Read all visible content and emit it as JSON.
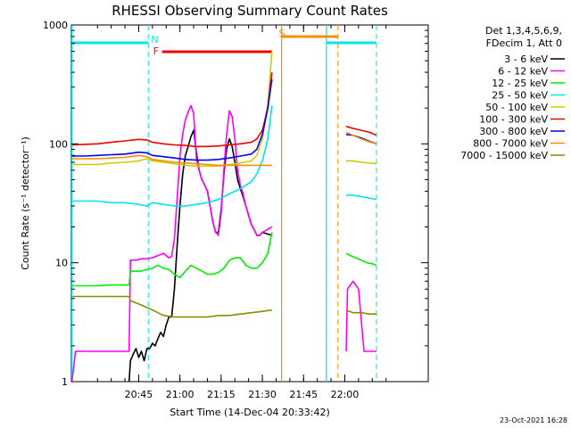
{
  "chart_data": {
    "type": "line",
    "title": "RHESSI Observing Summary Count Rates",
    "xlabel": "Start Time (14-Dec-04 20:33:42)",
    "ylabel": "Count Rate (s⁻¹ detector⁻¹)",
    "ylog": true,
    "ylim": [
      1,
      1000
    ],
    "xlim_minutes": [
      20.5,
      113.0
    ],
    "xticks": [
      {
        "min": 45,
        "label": "20:45"
      },
      {
        "min": 60,
        "label": "21:00"
      },
      {
        "min": 75,
        "label": "21:15"
      },
      {
        "min": 90,
        "label": "21:30"
      },
      {
        "min": 105,
        "label": "21:45"
      },
      {
        "min": 120,
        "label": "22:00"
      }
    ],
    "yticks": [
      {
        "v": 1,
        "label": "1"
      },
      {
        "v": 10,
        "label": "10"
      },
      {
        "v": 100,
        "label": "100"
      },
      {
        "v": 1000,
        "label": "1000"
      }
    ],
    "info_lines": [
      "Det 1,3,4,5,6,9,",
      "FDecim 1, Att 0"
    ],
    "footer": "23-Oct-2021 16:28",
    "flags": [
      {
        "label": "N",
        "color": "#00e5ee",
        "solid_min": 20.7,
        "dashed_min": 48.5,
        "label_min": 49.5
      },
      {
        "label": "F",
        "color": "#ee0000",
        "start_min": 53.5,
        "end_min": 93.5
      },
      {
        "label": "S",
        "color": "#ff8c00",
        "solid_min": 97.0,
        "dashed_min": 117.5,
        "label_min": 96.0
      },
      {
        "label": "",
        "color": "#00e5ee",
        "solid_min": 113.3,
        "dashed_min": 131.5
      }
    ],
    "series": [
      {
        "name": "3 - 6 keV",
        "color": "#000000",
        "points": [
          [
            41.5,
            1
          ],
          [
            42,
            1.5
          ],
          [
            43,
            1.7
          ],
          [
            44,
            1.9
          ],
          [
            45,
            1.6
          ],
          [
            46,
            1.8
          ],
          [
            47,
            1.5
          ],
          [
            48,
            1.9
          ],
          [
            49,
            1.9
          ],
          [
            50,
            2.1
          ],
          [
            51,
            2.0
          ],
          [
            52,
            2.3
          ],
          [
            53,
            2.6
          ],
          [
            54,
            2.4
          ],
          [
            55,
            3.0
          ],
          [
            56,
            3.5
          ],
          [
            57,
            3.5
          ],
          [
            58,
            6
          ],
          [
            59,
            14
          ],
          [
            60,
            30
          ],
          [
            61,
            55
          ],
          [
            62,
            80
          ],
          [
            63,
            95
          ],
          [
            64,
            115
          ],
          [
            65,
            130
          ],
          [
            66,
            85
          ],
          [
            67,
            60
          ],
          [
            68,
            50
          ],
          [
            69,
            45
          ],
          [
            70,
            40
          ],
          [
            71,
            30
          ],
          [
            72,
            22
          ],
          [
            73,
            18
          ],
          [
            74,
            18
          ],
          [
            75,
            28
          ],
          [
            76,
            55
          ],
          [
            77,
            90
          ],
          [
            78,
            110
          ],
          [
            79,
            95
          ],
          [
            80,
            70
          ],
          [
            81,
            50
          ],
          [
            82,
            42
          ],
          [
            83,
            36
          ],
          [
            84,
            30
          ],
          [
            85,
            25
          ],
          [
            86,
            21
          ],
          [
            87,
            19
          ],
          [
            88,
            17
          ],
          [
            89,
            17
          ],
          [
            90,
            18
          ],
          [
            93.5,
            17
          ]
        ]
      },
      {
        "name": "6 - 12 keV",
        "color": "#ff00ff",
        "points": [
          [
            20.7,
            1
          ],
          [
            22,
            1.8
          ],
          [
            26,
            1.8
          ],
          [
            30,
            1.8
          ],
          [
            35,
            1.8
          ],
          [
            41.5,
            1.8
          ],
          [
            42,
            10.5
          ],
          [
            44,
            10.5
          ],
          [
            46,
            10.8
          ],
          [
            48,
            10.8
          ],
          [
            50,
            11
          ],
          [
            52,
            11.5
          ],
          [
            54,
            12
          ],
          [
            56,
            11
          ],
          [
            57,
            11.3
          ],
          [
            58,
            16
          ],
          [
            59,
            35
          ],
          [
            60,
            80
          ],
          [
            61,
            120
          ],
          [
            62,
            160
          ],
          [
            63,
            185
          ],
          [
            64,
            210
          ],
          [
            65,
            180
          ],
          [
            66,
            75
          ],
          [
            67,
            60
          ],
          [
            68,
            50
          ],
          [
            69,
            45
          ],
          [
            70,
            40
          ],
          [
            71,
            30
          ],
          [
            72,
            22
          ],
          [
            73,
            18
          ],
          [
            74,
            17
          ],
          [
            75,
            26
          ],
          [
            76,
            60
          ],
          [
            77,
            120
          ],
          [
            78,
            190
          ],
          [
            79,
            170
          ],
          [
            80,
            110
          ],
          [
            81,
            60
          ],
          [
            82,
            45
          ],
          [
            83,
            38
          ],
          [
            84,
            30
          ],
          [
            85,
            25
          ],
          [
            86,
            21
          ],
          [
            87,
            19
          ],
          [
            88,
            17
          ],
          [
            89,
            17
          ],
          [
            90,
            18
          ],
          [
            93.5,
            20
          ],
          [
            120.5,
            1.8
          ],
          [
            121,
            6
          ],
          [
            123,
            7
          ],
          [
            125,
            6
          ],
          [
            127,
            1.8
          ],
          [
            131.5,
            1.8
          ]
        ]
      },
      {
        "name": "12 - 25 keV",
        "color": "#00ee00",
        "points": [
          [
            20.7,
            6.4
          ],
          [
            25,
            6.4
          ],
          [
            30,
            6.4
          ],
          [
            35,
            6.5
          ],
          [
            40,
            6.5
          ],
          [
            41.5,
            6.5
          ],
          [
            42,
            8.5
          ],
          [
            44,
            8.5
          ],
          [
            46,
            8.5
          ],
          [
            48,
            8.8
          ],
          [
            50,
            9
          ],
          [
            52,
            9.5
          ],
          [
            54,
            9
          ],
          [
            56,
            8.8
          ],
          [
            58,
            8
          ],
          [
            60,
            7.5
          ],
          [
            62,
            8.5
          ],
          [
            64,
            9.5
          ],
          [
            66,
            9
          ],
          [
            68,
            8.5
          ],
          [
            70,
            8
          ],
          [
            72,
            8
          ],
          [
            74,
            8.3
          ],
          [
            76,
            9
          ],
          [
            78,
            10.5
          ],
          [
            80,
            11
          ],
          [
            82,
            11
          ],
          [
            84,
            9.5
          ],
          [
            86,
            9
          ],
          [
            88,
            9
          ],
          [
            90,
            10
          ],
          [
            92,
            12
          ],
          [
            93.5,
            18
          ],
          [
            120.5,
            12
          ],
          [
            122,
            11.5
          ],
          [
            124,
            11
          ],
          [
            126,
            10.5
          ],
          [
            128,
            10
          ],
          [
            130,
            9.8
          ],
          [
            131.5,
            9.5
          ]
        ]
      },
      {
        "name": "25 - 50 keV",
        "color": "#00e5ee",
        "points": [
          [
            20.7,
            33
          ],
          [
            25,
            33
          ],
          [
            30,
            33
          ],
          [
            35,
            32
          ],
          [
            40,
            32
          ],
          [
            45,
            31
          ],
          [
            48,
            30
          ],
          [
            50,
            32
          ],
          [
            54,
            31
          ],
          [
            58,
            30
          ],
          [
            62,
            30
          ],
          [
            66,
            31
          ],
          [
            70,
            32
          ],
          [
            74,
            34
          ],
          [
            78,
            38
          ],
          [
            82,
            42
          ],
          [
            86,
            48
          ],
          [
            88,
            56
          ],
          [
            90,
            72
          ],
          [
            92,
            110
          ],
          [
            93.5,
            210
          ],
          [
            120.5,
            37
          ],
          [
            123,
            37
          ],
          [
            126,
            36
          ],
          [
            129,
            35
          ],
          [
            131.5,
            34
          ]
        ]
      },
      {
        "name": "50 - 100 keV",
        "color": "#cccc00",
        "points": [
          [
            20.7,
            67
          ],
          [
            25,
            67
          ],
          [
            30,
            67
          ],
          [
            35,
            69
          ],
          [
            40,
            70
          ],
          [
            45,
            72
          ],
          [
            48,
            75
          ],
          [
            50,
            72
          ],
          [
            54,
            70
          ],
          [
            58,
            68
          ],
          [
            62,
            66
          ],
          [
            66,
            65
          ],
          [
            70,
            65
          ],
          [
            74,
            65
          ],
          [
            78,
            67
          ],
          [
            82,
            69
          ],
          [
            86,
            72
          ],
          [
            88,
            80
          ],
          [
            90,
            110
          ],
          [
            92,
            220
          ],
          [
            93.5,
            600
          ],
          [
            120.5,
            72
          ],
          [
            123,
            72
          ],
          [
            126,
            70
          ],
          [
            129,
            69
          ],
          [
            131.5,
            68
          ]
        ]
      },
      {
        "name": "100 - 300 keV",
        "color": "#ee0000",
        "points": [
          [
            20.7,
            98
          ],
          [
            25,
            99
          ],
          [
            30,
            100
          ],
          [
            35,
            103
          ],
          [
            40,
            106
          ],
          [
            45,
            109
          ],
          [
            48,
            108
          ],
          [
            50,
            103
          ],
          [
            54,
            100
          ],
          [
            58,
            98
          ],
          [
            62,
            97
          ],
          [
            66,
            95
          ],
          [
            70,
            95
          ],
          [
            74,
            96
          ],
          [
            78,
            98
          ],
          [
            82,
            100
          ],
          [
            86,
            103
          ],
          [
            88,
            110
          ],
          [
            90,
            130
          ],
          [
            92,
            200
          ],
          [
            93.5,
            400
          ],
          [
            120.5,
            140
          ],
          [
            123,
            135
          ],
          [
            126,
            130
          ],
          [
            129,
            125
          ],
          [
            131.5,
            118
          ]
        ]
      },
      {
        "name": "300 - 800 keV",
        "color": "#0000ff",
        "points": [
          [
            20.7,
            79
          ],
          [
            25,
            79
          ],
          [
            30,
            80
          ],
          [
            35,
            81
          ],
          [
            40,
            82
          ],
          [
            45,
            85
          ],
          [
            48,
            84
          ],
          [
            50,
            80
          ],
          [
            54,
            78
          ],
          [
            58,
            76
          ],
          [
            62,
            74
          ],
          [
            66,
            73
          ],
          [
            70,
            73
          ],
          [
            74,
            74
          ],
          [
            78,
            76
          ],
          [
            82,
            79
          ],
          [
            86,
            82
          ],
          [
            88,
            90
          ],
          [
            90,
            120
          ],
          [
            92,
            200
          ],
          [
            93.5,
            350
          ],
          [
            120.5,
            120
          ],
          [
            123,
            118
          ],
          [
            126,
            112
          ],
          [
            129,
            105
          ],
          [
            131.5,
            100
          ]
        ]
      },
      {
        "name": "800 - 7000 keV",
        "color": "#ff8c00",
        "points": [
          [
            20.7,
            75
          ],
          [
            25,
            75
          ],
          [
            30,
            75
          ],
          [
            35,
            76
          ],
          [
            40,
            77
          ],
          [
            45,
            80
          ],
          [
            48,
            78
          ],
          [
            50,
            74
          ],
          [
            54,
            72
          ],
          [
            58,
            70
          ],
          [
            62,
            69
          ],
          [
            66,
            68
          ],
          [
            70,
            67
          ],
          [
            74,
            66
          ],
          [
            78,
            66
          ],
          [
            82,
            66
          ],
          [
            86,
            66
          ],
          [
            88,
            66
          ],
          [
            90,
            66
          ],
          [
            92,
            66
          ],
          [
            93.5,
            66
          ],
          [
            120.5,
            125
          ],
          [
            123,
            118
          ],
          [
            126,
            110
          ],
          [
            129,
            104
          ],
          [
            131.5,
            100
          ]
        ]
      },
      {
        "name": "7000 - 15000 keV",
        "color": "#8b8b00",
        "points": [
          [
            20.7,
            5.2
          ],
          [
            25,
            5.2
          ],
          [
            30,
            5.2
          ],
          [
            35,
            5.2
          ],
          [
            40,
            5.2
          ],
          [
            41.5,
            5.2
          ],
          [
            42,
            4.8
          ],
          [
            45,
            4.5
          ],
          [
            48,
            4.2
          ],
          [
            50,
            4
          ],
          [
            54,
            3.6
          ],
          [
            58,
            3.5
          ],
          [
            62,
            3.5
          ],
          [
            66,
            3.5
          ],
          [
            70,
            3.5
          ],
          [
            74,
            3.6
          ],
          [
            78,
            3.6
          ],
          [
            82,
            3.7
          ],
          [
            86,
            3.8
          ],
          [
            90,
            3.9
          ],
          [
            93.5,
            4
          ],
          [
            120.5,
            4
          ],
          [
            123,
            3.8
          ],
          [
            126,
            3.8
          ],
          [
            129,
            3.7
          ],
          [
            131.5,
            3.7
          ]
        ]
      }
    ]
  }
}
